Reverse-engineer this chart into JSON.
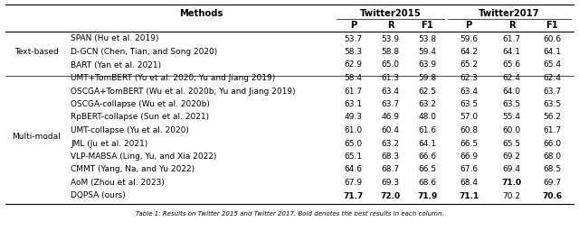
{
  "caption": "Table 1: Results on Twitter 2015 and Twitter 2017. Bold denotes the best results in each column.",
  "rows": [
    {
      "category": "Text-based",
      "method": "SPAN (Hu et al. 2019)",
      "vals": [
        "53.7",
        "53.9",
        "53.8",
        "59.6",
        "61.7",
        "60.6"
      ],
      "bold": [
        false,
        false,
        false,
        false,
        false,
        false
      ]
    },
    {
      "category": "Text-based",
      "method": "D-GCN (Chen, Tian, and Song 2020)",
      "vals": [
        "58.3",
        "58.8",
        "59.4",
        "64.2",
        "64.1",
        "64.1"
      ],
      "bold": [
        false,
        false,
        false,
        false,
        false,
        false
      ]
    },
    {
      "category": "Text-based",
      "method": "BART (Yan et al. 2021)",
      "vals": [
        "62.9",
        "65.0",
        "63.9",
        "65.2",
        "65.6",
        "65.4"
      ],
      "bold": [
        false,
        false,
        false,
        false,
        false,
        false
      ]
    },
    {
      "category": "Multi-modal",
      "method": "UMT+TomBERT (Yu et al. 2020; Yu and Jiang 2019)",
      "vals": [
        "58.4",
        "61.3",
        "59.8",
        "62.3",
        "62.4",
        "62.4"
      ],
      "bold": [
        false,
        false,
        false,
        false,
        false,
        false
      ]
    },
    {
      "category": "Multi-modal",
      "method": "OSCGA+TomBERT (Wu et al. 2020b; Yu and Jiang 2019)",
      "vals": [
        "61.7",
        "63.4",
        "62.5",
        "63.4",
        "64.0",
        "63.7"
      ],
      "bold": [
        false,
        false,
        false,
        false,
        false,
        false
      ]
    },
    {
      "category": "Multi-modal",
      "method": "OSCGA-collapse (Wu et al. 2020b)",
      "vals": [
        "63.1",
        "63.7",
        "63.2",
        "63.5",
        "63.5",
        "63.5"
      ],
      "bold": [
        false,
        false,
        false,
        false,
        false,
        false
      ]
    },
    {
      "category": "Multi-modal",
      "method": "RpBERT-collapse (Sun et al. 2021)",
      "vals": [
        "49.3",
        "46.9",
        "48.0",
        "57.0",
        "55.4",
        "56.2"
      ],
      "bold": [
        false,
        false,
        false,
        false,
        false,
        false
      ]
    },
    {
      "category": "Multi-modal",
      "method": "UMT-collapse (Yu et al. 2020)",
      "vals": [
        "61.0",
        "60.4",
        "61.6",
        "60.8",
        "60.0",
        "61.7"
      ],
      "bold": [
        false,
        false,
        false,
        false,
        false,
        false
      ]
    },
    {
      "category": "Multi-modal",
      "method": "JML (Ju et al. 2021)",
      "vals": [
        "65.0",
        "63.2",
        "64.1",
        "66.5",
        "65.5",
        "66.0"
      ],
      "bold": [
        false,
        false,
        false,
        false,
        false,
        false
      ]
    },
    {
      "category": "Multi-modal",
      "method": "VLP-MABSA (Ling, Yu, and Xia 2022)",
      "vals": [
        "65.1",
        "68.3",
        "66.6",
        "66.9",
        "69.2",
        "68.0"
      ],
      "bold": [
        false,
        false,
        false,
        false,
        false,
        false
      ]
    },
    {
      "category": "Multi-modal",
      "method": "CMMT (Yang, Na, and Yu 2022)",
      "vals": [
        "64.6",
        "68.7",
        "66.5",
        "67.6",
        "69.4",
        "68.5"
      ],
      "bold": [
        false,
        false,
        false,
        false,
        false,
        false
      ]
    },
    {
      "category": "Multi-modal",
      "method": "AoM (Zhou et al. 2023)",
      "vals": [
        "67.9",
        "69.3",
        "68.6",
        "68.4",
        "71.0",
        "69.7"
      ],
      "bold": [
        false,
        false,
        false,
        false,
        true,
        false
      ]
    },
    {
      "category": "Multi-modal",
      "method": "DQPSA (ours)",
      "vals": [
        "71.7",
        "72.0",
        "71.9",
        "71.1",
        "70.2",
        "70.6"
      ],
      "bold": [
        true,
        true,
        true,
        true,
        false,
        true
      ]
    }
  ],
  "bg_color": "#ffffff",
  "text_color": "#000000",
  "fs": 6.5,
  "hfs": 7.2
}
